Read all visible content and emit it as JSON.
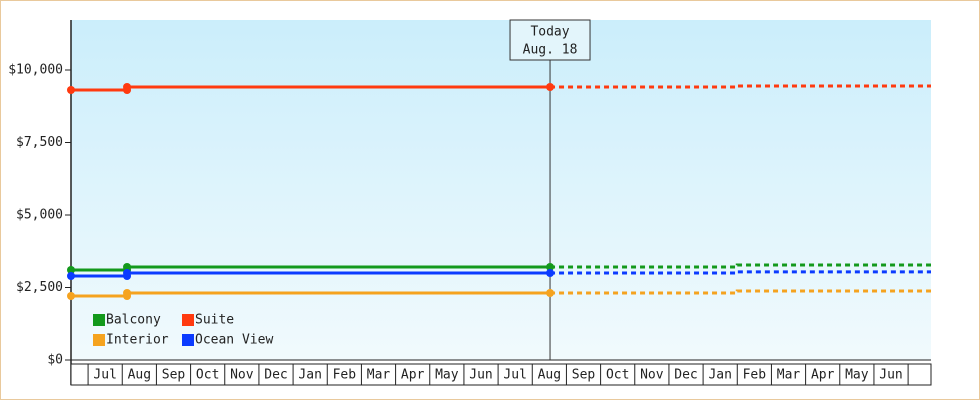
{
  "chart_data": {
    "type": "line",
    "ylim": [
      0,
      11724
    ],
    "yticks": [
      {
        "value": 0,
        "label": "$0"
      },
      {
        "value": 2500,
        "label": "$2,500"
      },
      {
        "value": 5000,
        "label": "$5,000"
      },
      {
        "value": 7500,
        "label": "$7,500"
      },
      {
        "value": 10000,
        "label": "$10,000"
      }
    ],
    "xlim": [
      0,
      25.17
    ],
    "categories": [
      "Jul",
      "Aug",
      "Sep",
      "Oct",
      "Nov",
      "Dec",
      "Jan",
      "Feb",
      "Mar",
      "Apr",
      "May",
      "Jun",
      "Jul",
      "Aug",
      "Sep",
      "Oct",
      "Nov",
      "Dec",
      "Jan",
      "Feb",
      "Mar",
      "Apr",
      "May",
      "Jun"
    ],
    "annotation": {
      "x": 14.02,
      "lines": [
        "Today",
        "Aug. 18"
      ]
    },
    "series": [
      {
        "name": "Balcony",
        "color": "#13991c",
        "x": [
          0,
          1.64,
          1.64,
          14.02
        ],
        "values": [
          3103,
          3103,
          3207,
          3207
        ],
        "forecast_x": [
          14.02,
          19.5,
          19.5,
          25.17
        ],
        "forecast_values": [
          3207,
          3207,
          3276,
          3276
        ]
      },
      {
        "name": "Suite",
        "color": "#ff3a10",
        "x": [
          0,
          1.64,
          1.64,
          14.02
        ],
        "values": [
          9310,
          9310,
          9414,
          9414
        ],
        "forecast_x": [
          14.02,
          19.5,
          19.5,
          25.17
        ],
        "forecast_values": [
          9414,
          9414,
          9450,
          9450
        ]
      },
      {
        "name": "Interior",
        "color": "#f5a31f",
        "x": [
          0,
          1.64,
          1.64,
          14.02
        ],
        "values": [
          2207,
          2207,
          2310,
          2310
        ],
        "forecast_x": [
          14.02,
          19.5,
          19.5,
          25.17
        ],
        "forecast_values": [
          2310,
          2310,
          2379,
          2379
        ]
      },
      {
        "name": "Ocean View",
        "color": "#0b3bff",
        "x": [
          0,
          1.64,
          1.64,
          14.02
        ],
        "values": [
          2897,
          2897,
          3000,
          3000
        ],
        "forecast_x": [
          14.02,
          19.5,
          19.5,
          25.17
        ],
        "forecast_values": [
          3000,
          3000,
          3040,
          3040
        ]
      }
    ]
  }
}
